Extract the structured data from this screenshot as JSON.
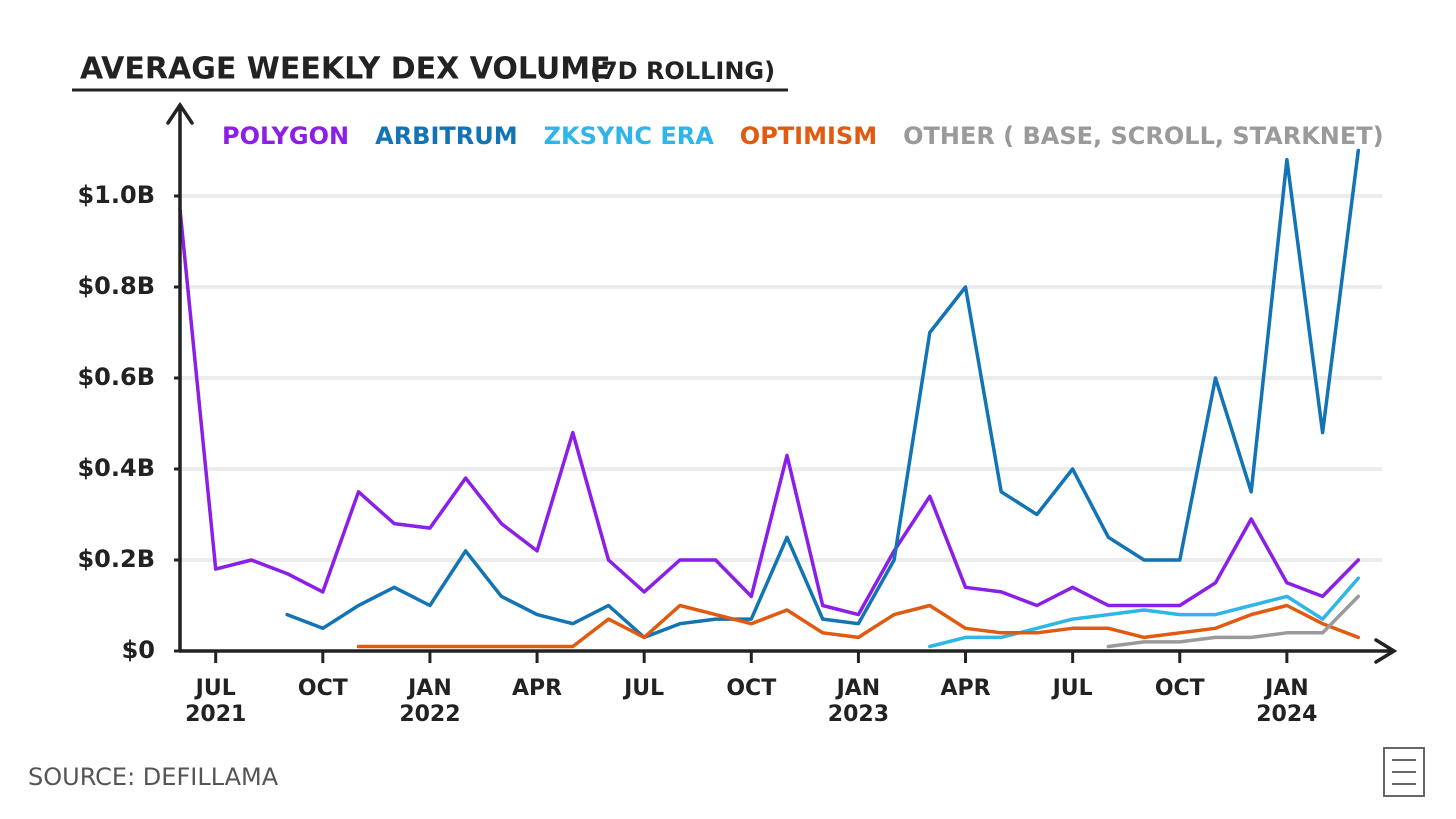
{
  "chart_data": {
    "type": "line",
    "title": "AVERAGE WEEKLY DEX VOLUME",
    "subtitle": "(7D ROLLING)",
    "source": "SOURCE: DEFILLAMA",
    "x": [
      "2021-06",
      "2021-07",
      "2021-08",
      "2021-09",
      "2021-10",
      "2021-11",
      "2021-12",
      "2022-01",
      "2022-02",
      "2022-03",
      "2022-04",
      "2022-05",
      "2022-06",
      "2022-07",
      "2022-08",
      "2022-09",
      "2022-10",
      "2022-11",
      "2022-12",
      "2023-01",
      "2023-02",
      "2023-03",
      "2023-04",
      "2023-05",
      "2023-06",
      "2023-07",
      "2023-08",
      "2023-09",
      "2023-10",
      "2023-11",
      "2023-12",
      "2024-01",
      "2024-02",
      "2024-03"
    ],
    "series": [
      {
        "name": "POLYGON",
        "color": "#8b1fe8",
        "values": [
          0.97,
          0.18,
          0.2,
          0.17,
          0.13,
          0.35,
          0.28,
          0.27,
          0.38,
          0.28,
          0.22,
          0.48,
          0.2,
          0.13,
          0.2,
          0.2,
          0.12,
          0.43,
          0.1,
          0.08,
          0.22,
          0.34,
          0.14,
          0.13,
          0.1,
          0.14,
          0.1,
          0.1,
          0.1,
          0.15,
          0.29,
          0.15,
          0.12,
          0.2
        ]
      },
      {
        "name": "ARBITRUM",
        "color": "#1273b5",
        "values": [
          null,
          null,
          null,
          0.08,
          0.05,
          0.1,
          0.14,
          0.1,
          0.22,
          0.12,
          0.08,
          0.06,
          0.1,
          0.03,
          0.06,
          0.07,
          0.07,
          0.25,
          0.07,
          0.06,
          0.2,
          0.7,
          0.8,
          0.35,
          0.3,
          0.4,
          0.25,
          0.2,
          0.2,
          0.6,
          0.35,
          1.08,
          0.48,
          1.1
        ]
      },
      {
        "name": "ZKSYNC ERA",
        "color": "#2fb5e8",
        "values": [
          null,
          null,
          null,
          null,
          null,
          null,
          null,
          null,
          null,
          null,
          null,
          null,
          null,
          null,
          null,
          null,
          null,
          null,
          null,
          null,
          null,
          0.01,
          0.03,
          0.03,
          0.05,
          0.07,
          0.08,
          0.09,
          0.08,
          0.08,
          0.1,
          0.12,
          0.07,
          0.16
        ]
      },
      {
        "name": "OPTIMISM",
        "color": "#e05a10",
        "values": [
          null,
          null,
          null,
          null,
          null,
          0.01,
          0.01,
          0.01,
          0.01,
          0.01,
          0.01,
          0.01,
          0.07,
          0.03,
          0.1,
          0.08,
          0.06,
          0.09,
          0.04,
          0.03,
          0.08,
          0.1,
          0.05,
          0.04,
          0.04,
          0.05,
          0.05,
          0.03,
          0.04,
          0.05,
          0.08,
          0.1,
          0.06,
          0.03
        ]
      },
      {
        "name": "OTHER ( BASE, SCROLL, STARKNET)",
        "color": "#9a9a9a",
        "values": [
          null,
          null,
          null,
          null,
          null,
          null,
          null,
          null,
          null,
          null,
          null,
          null,
          null,
          null,
          null,
          null,
          null,
          null,
          null,
          null,
          null,
          null,
          null,
          null,
          null,
          null,
          0.01,
          0.02,
          0.02,
          0.03,
          0.03,
          0.04,
          0.04,
          0.12
        ]
      }
    ],
    "xlim": [
      "2021-06",
      "2024-04"
    ],
    "xticks": [
      {
        "value": "2021-07",
        "label": "JUL"
      },
      {
        "value": "2021-10",
        "label": "OCT"
      },
      {
        "value": "2022-01",
        "label": "JAN"
      },
      {
        "value": "2022-04",
        "label": "APR"
      },
      {
        "value": "2022-07",
        "label": "JUL"
      },
      {
        "value": "2022-10",
        "label": "OCT"
      },
      {
        "value": "2023-01",
        "label": "JAN"
      },
      {
        "value": "2023-04",
        "label": "APR"
      },
      {
        "value": "2023-07",
        "label": "JUL"
      },
      {
        "value": "2023-10",
        "label": "OCT"
      },
      {
        "value": "2024-01",
        "label": "JAN"
      }
    ],
    "xtick_years": [
      {
        "value": "2021-07",
        "label": "2021"
      },
      {
        "value": "2022-01",
        "label": "2022"
      },
      {
        "value": "2023-01",
        "label": "2023"
      },
      {
        "value": "2024-01",
        "label": "2024"
      }
    ],
    "ylim": [
      0,
      1.2
    ],
    "yticks": [
      {
        "value": 0,
        "label": "$0"
      },
      {
        "value": 0.2,
        "label": "$0.2B"
      },
      {
        "value": 0.4,
        "label": "$0.4B"
      },
      {
        "value": 0.6,
        "label": "$0.6B"
      },
      {
        "value": 0.8,
        "label": "$0.8B"
      },
      {
        "value": 1.0,
        "label": "$1.0B"
      }
    ],
    "grid": true
  }
}
